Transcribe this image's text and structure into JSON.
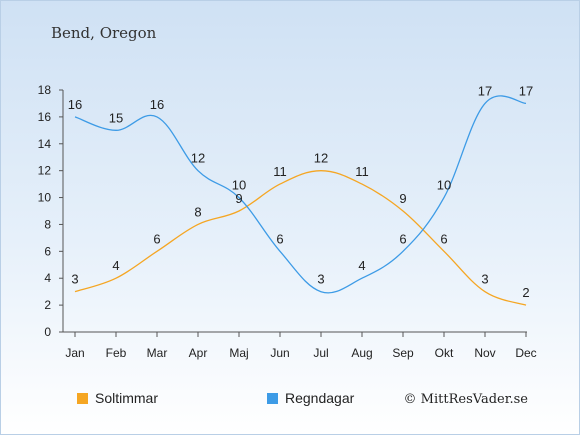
{
  "chart_data": {
    "type": "line",
    "title": "Bend, Oregon",
    "categories": [
      "Jan",
      "Feb",
      "Mar",
      "Apr",
      "Maj",
      "Jun",
      "Jul",
      "Aug",
      "Sep",
      "Okt",
      "Nov",
      "Dec"
    ],
    "series": [
      {
        "name": "Soltimmar",
        "color": "#f5a623",
        "values": [
          3,
          4,
          6,
          8,
          9,
          11,
          12,
          11,
          9,
          6,
          3,
          2
        ]
      },
      {
        "name": "Regndagar",
        "color": "#3d9be6",
        "values": [
          16,
          15,
          16,
          12,
          10,
          6,
          3,
          4,
          6,
          10,
          17,
          17
        ]
      }
    ],
    "yticks": [
      0,
      2,
      4,
      6,
      8,
      10,
      12,
      14,
      16,
      18
    ],
    "ylim": [
      0,
      18
    ],
    "grid": false,
    "legend_position": "bottom-left",
    "credit": "© MittResVader.se"
  }
}
